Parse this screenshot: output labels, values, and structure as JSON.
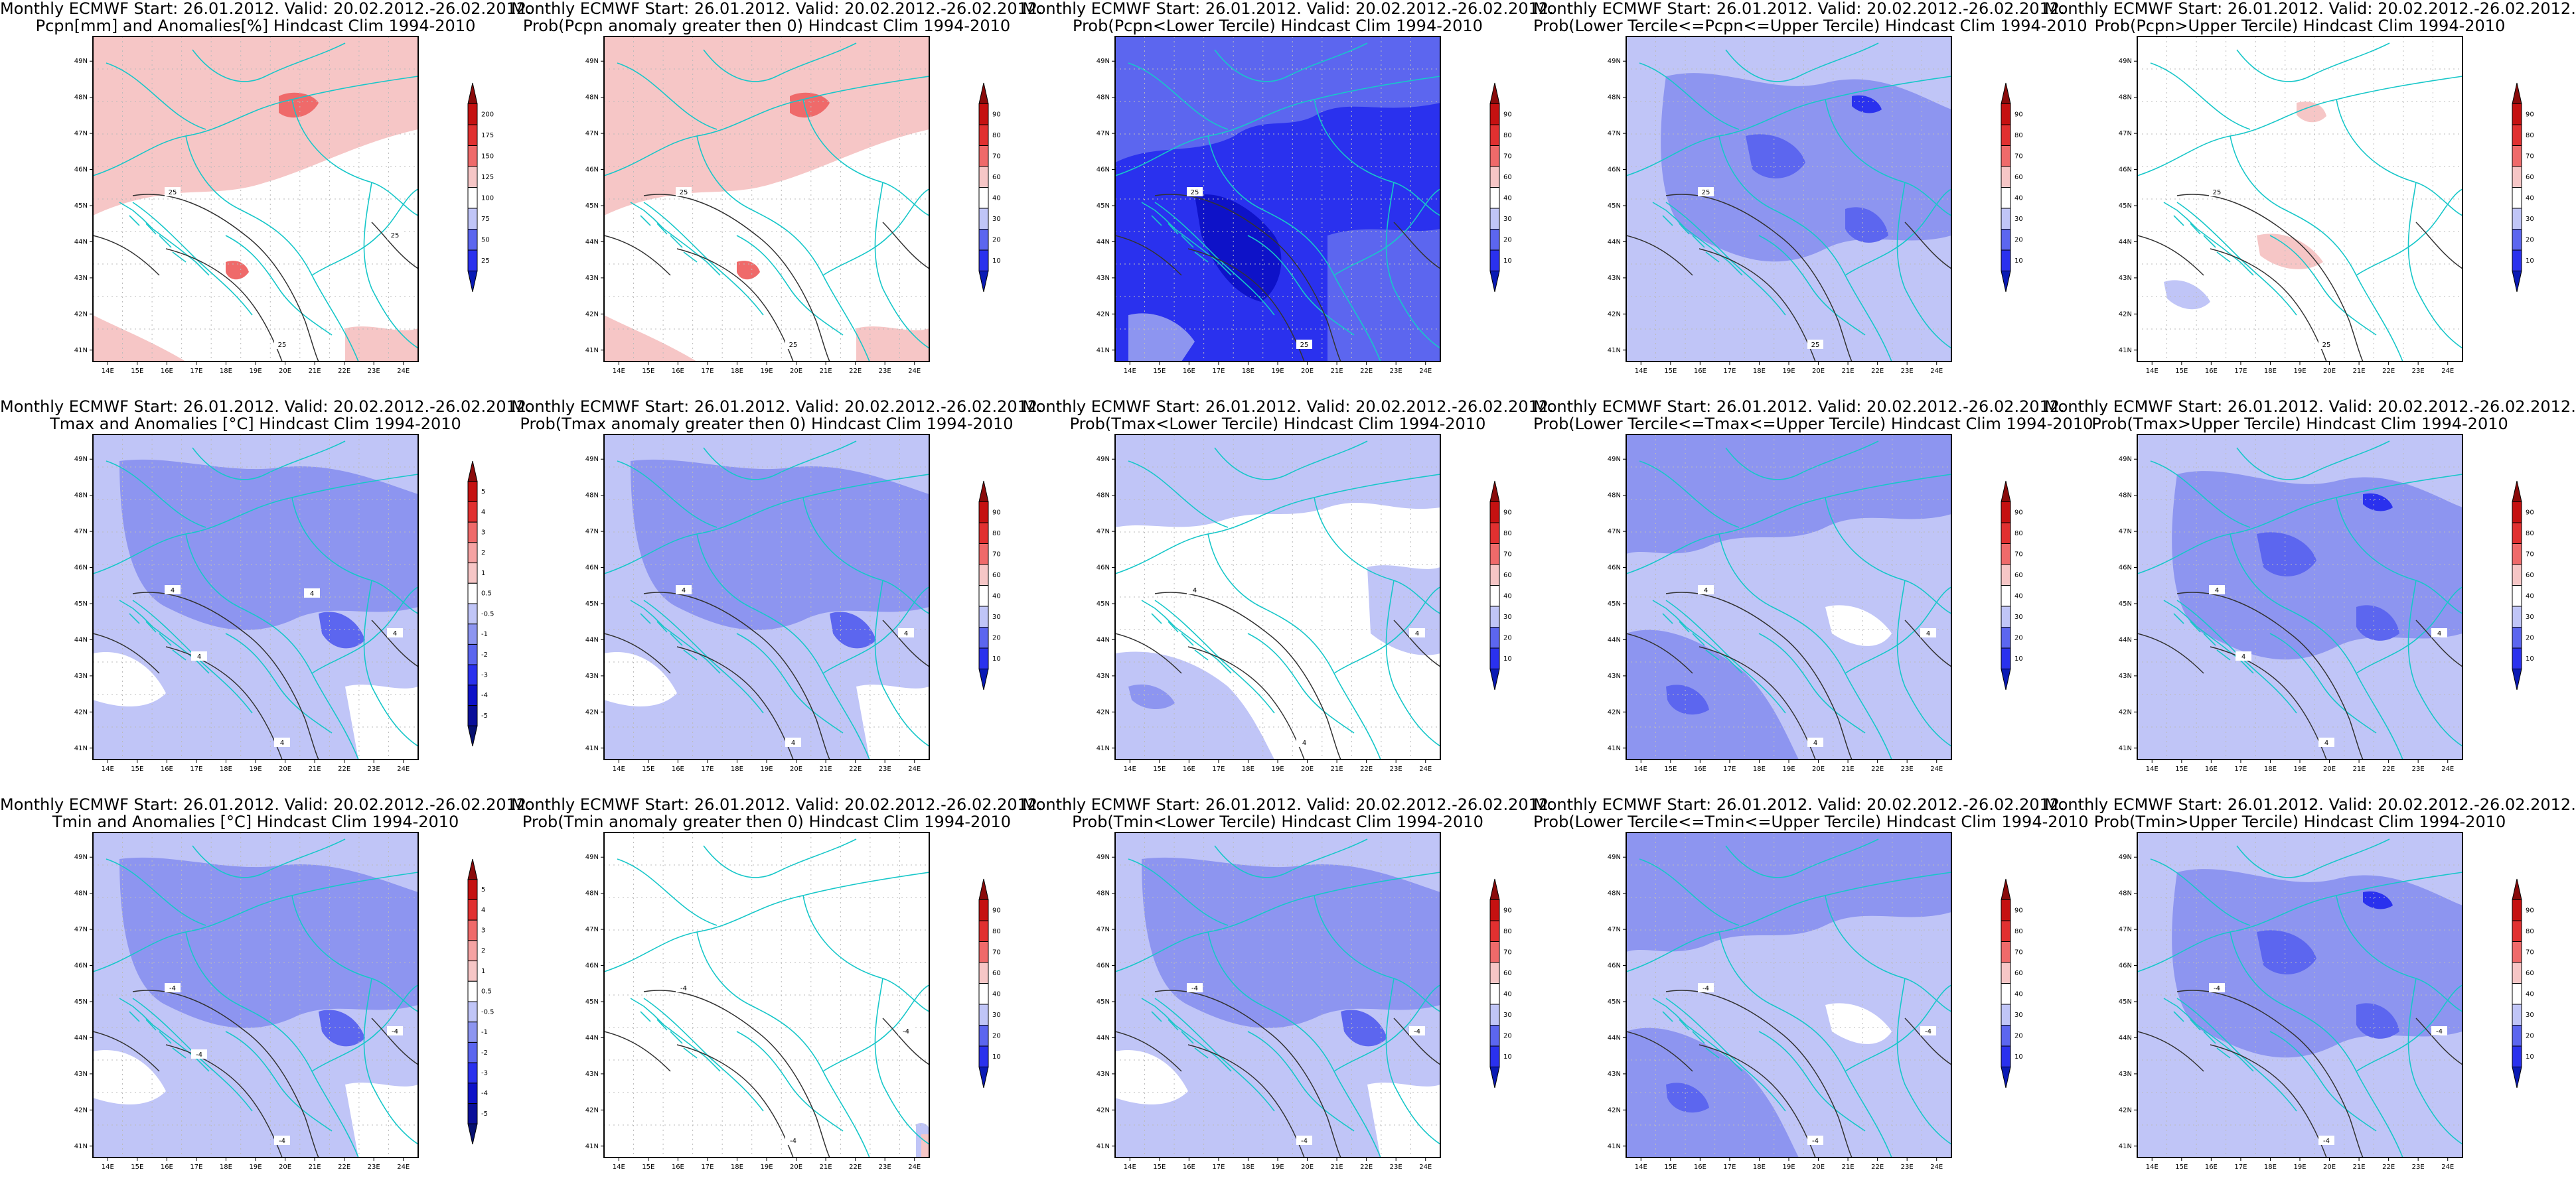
{
  "colors": {
    "background": "#ffffff",
    "frame": "#000000",
    "border_lines": "#17c7c9",
    "contour": "#333333",
    "blue_scale": [
      "#0e12c8",
      "#2a31ee",
      "#5c66ef",
      "#8d95f0",
      "#c0c5f7"
    ],
    "red_scale": [
      "#f6c6c6",
      "#f5a3a3",
      "#ef6a6a",
      "#e13030",
      "#c51111"
    ],
    "white_band": "#ffffff"
  },
  "lon_ticks": [
    "14E",
    "15E",
    "16E",
    "17E",
    "18E",
    "19E",
    "20E",
    "21E",
    "22E",
    "23E",
    "24E"
  ],
  "lat_ticks": [
    "49N",
    "48N",
    "47N",
    "46N",
    "45N",
    "44N",
    "43N",
    "42N",
    "41N"
  ],
  "colorbars": {
    "anom_pcpn": [
      "200",
      "175",
      "150",
      "125",
      "100",
      "75",
      "50",
      "25"
    ],
    "anom_temp": [
      "5",
      "4",
      "3",
      "2",
      "1",
      "0.5",
      "-0.5",
      "-1",
      "-2",
      "-3",
      "-4",
      "-5"
    ],
    "prob": [
      "90",
      "80",
      "70",
      "60",
      "40",
      "30",
      "20",
      "10"
    ]
  },
  "panels": [
    {
      "line1": "Monthly ECMWF Start: 26.01.2012. Valid: 20.02.2012.-26.02.2012.",
      "line2": "Pcpn[mm] and Anomalies[%] Hindcast Clim 1994-2010",
      "cbar": "anom_pcpn",
      "fill": "red1",
      "labels": [
        "25",
        "25",
        "25"
      ]
    },
    {
      "line1": "Monthly ECMWF Start: 26.01.2012. Valid: 20.02.2012.-26.02.2012.",
      "line2": "Prob(Pcpn anomaly greater then 0) Hindcast Clim 1994-2010",
      "cbar": "prob",
      "fill": "red1",
      "labels": [
        "25",
        "25"
      ]
    },
    {
      "line1": "Monthly ECMWF Start: 26.01.2012. Valid: 20.02.2012.-26.02.2012.",
      "line2": "Prob(Pcpn<Lower Tercile) Hindcast Clim 1994-2010",
      "cbar": "prob",
      "fill": "blue5",
      "labels": [
        "25",
        "25"
      ]
    },
    {
      "line1": "Monthly ECMWF Start: 26.01.2012. Valid: 20.02.2012.-26.02.2012.",
      "line2": "Prob(Lower Tercile<=Pcpn<=Upper Tercile) Hindcast Clim 1994-2010",
      "cbar": "prob",
      "fill": "blue4",
      "labels": [
        "25",
        "25"
      ]
    },
    {
      "line1": "Monthly ECMWF Start: 26.01.2012. Valid: 20.02.2012.-26.02.2012.",
      "line2": "Prob(Pcpn>Upper Tercile) Hindcast Clim 1994-2010",
      "cbar": "prob",
      "fill": "red2",
      "labels": [
        "25",
        "25"
      ]
    },
    {
      "line1": "Monthly ECMWF Start: 26.01.2012. Valid: 20.02.2012.-26.02.2012.",
      "line2": "Tmax and Anomalies [°C] Hindcast Clim 1994-2010",
      "cbar": "anom_temp",
      "fill": "blue2",
      "labels": [
        "4",
        "4",
        "4",
        "4",
        "4"
      ]
    },
    {
      "line1": "Monthly ECMWF Start: 26.01.2012. Valid: 20.02.2012.-26.02.2012.",
      "line2": "Prob(Tmax anomaly greater then 0) Hindcast Clim 1994-2010",
      "cbar": "prob",
      "fill": "blue2",
      "labels": [
        "4",
        "4",
        "4"
      ]
    },
    {
      "line1": "Monthly ECMWF Start: 26.01.2012. Valid: 20.02.2012.-26.02.2012.",
      "line2": "Prob(Tmax<Lower Tercile) Hindcast Clim 1994-2010",
      "cbar": "prob",
      "fill": "blue1",
      "labels": [
        "4",
        "4",
        "4"
      ]
    },
    {
      "line1": "Monthly ECMWF Start: 26.01.2012. Valid: 20.02.2012.-26.02.2012.",
      "line2": "Prob(Lower Tercile<=Tmax<=Upper Tercile) Hindcast Clim 1994-2010",
      "cbar": "prob",
      "fill": "blue3",
      "labels": [
        "4",
        "4",
        "4"
      ]
    },
    {
      "line1": "Monthly ECMWF Start: 26.01.2012. Valid: 20.02.2012.-26.02.2012.",
      "line2": "Prob(Tmax>Upper Tercile) Hindcast Clim 1994-2010",
      "cbar": "prob",
      "fill": "blue4",
      "labels": [
        "4",
        "4",
        "4",
        "4"
      ]
    },
    {
      "line1": "Monthly ECMWF Start: 26.01.2012. Valid: 20.02.2012.-26.02.2012.",
      "line2": "Tmin and Anomalies [°C] Hindcast Clim 1994-2010",
      "cbar": "anom_temp",
      "fill": "blue2",
      "labels": [
        "-4",
        "-4",
        "-4",
        "-4"
      ]
    },
    {
      "line1": "Monthly ECMWF Start: 26.01.2012. Valid: 20.02.2012.-26.02.2012.",
      "line2": "Prob(Tmin anomaly greater then 0) Hindcast Clim 1994-2010",
      "cbar": "prob",
      "fill": "blue0",
      "labels": [
        "-4",
        "-4",
        "-4"
      ]
    },
    {
      "line1": "Monthly ECMWF Start: 26.01.2012. Valid: 20.02.2012.-26.02.2012.",
      "line2": "Prob(Tmin<Lower Tercile) Hindcast Clim 1994-2010",
      "cbar": "prob",
      "fill": "blue2",
      "labels": [
        "-4",
        "-4",
        "-4"
      ]
    },
    {
      "line1": "Monthly ECMWF Start: 26.01.2012. Valid: 20.02.2012.-26.02.2012.",
      "line2": "Prob(Lower Tercile<=Tmin<=Upper Tercile) Hindcast Clim 1994-2010",
      "cbar": "prob",
      "fill": "blue3",
      "labels": [
        "-4",
        "-4",
        "-4"
      ]
    },
    {
      "line1": "Monthly ECMWF Start: 26.01.2012. Valid: 20.02.2012.-26.02.2012.",
      "line2": "Prob(Tmin>Upper Tercile) Hindcast Clim 1994-2010",
      "cbar": "prob",
      "fill": "blue4",
      "labels": [
        "-4",
        "-4",
        "-4"
      ]
    }
  ]
}
